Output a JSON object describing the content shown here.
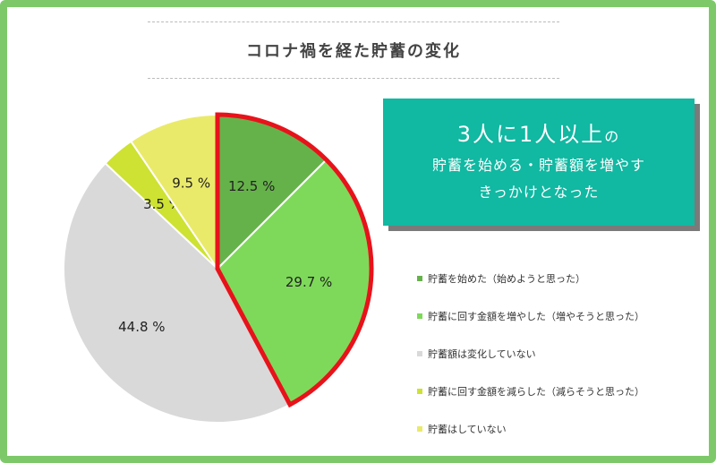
{
  "title": "コロナ禍を経た貯蓄の変化",
  "callout": {
    "big_prefix": "3人に1人以上",
    "big_suffix": "の",
    "line1": "貯蓄を始める・貯蓄額を増やす",
    "line2": "きっかけとなった"
  },
  "colors": {
    "frame": "#7dc96a",
    "callout_bg": "#11b8a2",
    "highlight_border": "#e8121b"
  },
  "chart_data": {
    "type": "pie",
    "title": "コロナ禍を経た貯蓄の変化",
    "start_angle_deg": 0,
    "direction": "clockwise",
    "slices": [
      {
        "label": "貯蓄を始めた（始めようと思った）",
        "value": 12.5,
        "display": "12.5 %",
        "color": "#66b24a",
        "highlighted": true
      },
      {
        "label": "貯蓄に回す金額を増やした（増やそうと思った）",
        "value": 29.7,
        "display": "29.7 %",
        "color": "#7ed95a",
        "highlighted": true
      },
      {
        "label": "貯蓄額は変化していない",
        "value": 44.8,
        "display": "44.8 %",
        "color": "#d9d9d9",
        "highlighted": false
      },
      {
        "label": "貯蓄に回す金額を減らした（減らそうと思った）",
        "value": 3.5,
        "display": "3.5 %",
        "color": "#cde232",
        "highlighted": false
      },
      {
        "label": "貯蓄はしていない",
        "value": 9.5,
        "display": "9.5 %",
        "color": "#eaea6a",
        "highlighted": false
      }
    ],
    "legend_position": "right"
  }
}
